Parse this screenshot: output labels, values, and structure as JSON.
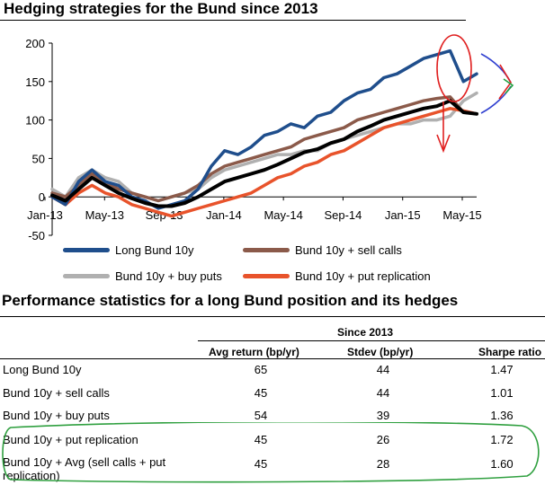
{
  "page_title": "Hedging strategies for the Bund since 2013",
  "chart_data": {
    "type": "line",
    "title": "Hedging strategies for the Bund since 2013",
    "xlabel": "",
    "ylabel": "",
    "ylim": [
      -50,
      200
    ],
    "yticks": [
      -50,
      0,
      50,
      100,
      150,
      200
    ],
    "xticks": [
      "Jan-13",
      "May-13",
      "Sep-13",
      "Jan-14",
      "May-14",
      "Sep-14",
      "Jan-15",
      "May-15"
    ],
    "x": [
      0,
      1,
      2,
      3,
      4,
      5,
      6,
      7,
      8,
      9,
      10,
      11,
      12,
      13,
      14,
      15,
      16,
      17,
      18,
      19,
      20,
      21,
      22,
      23,
      24,
      25,
      26,
      27,
      28,
      29,
      30,
      31,
      32
    ],
    "series": [
      {
        "name": "Long Bund 10y",
        "color": "#1f4e8c",
        "values": [
          0,
          -10,
          20,
          35,
          20,
          15,
          0,
          -5,
          -15,
          -10,
          -5,
          10,
          40,
          60,
          55,
          65,
          80,
          85,
          95,
          90,
          105,
          110,
          125,
          135,
          140,
          155,
          160,
          170,
          180,
          185,
          190,
          150,
          160
        ]
      },
      {
        "name": "Bund 10y + sell calls",
        "color": "#8b5a4a",
        "values": [
          5,
          0,
          15,
          30,
          20,
          10,
          5,
          0,
          -5,
          0,
          5,
          15,
          30,
          40,
          45,
          50,
          55,
          60,
          65,
          75,
          80,
          85,
          90,
          100,
          105,
          110,
          115,
          120,
          125,
          128,
          130,
          110,
          108
        ]
      },
      {
        "name": "Bund 10y + buy puts",
        "color": "#b0b0b0",
        "values": [
          10,
          0,
          25,
          35,
          25,
          20,
          5,
          0,
          -5,
          0,
          5,
          10,
          25,
          35,
          40,
          45,
          50,
          55,
          55,
          60,
          60,
          70,
          75,
          80,
          85,
          90,
          95,
          95,
          100,
          100,
          105,
          125,
          135
        ]
      },
      {
        "name": "Bund 10y + put replication",
        "color": "#e8532b",
        "values": [
          0,
          -10,
          5,
          15,
          5,
          0,
          -10,
          -15,
          -20,
          -25,
          -20,
          -15,
          -10,
          -5,
          0,
          5,
          15,
          25,
          30,
          40,
          45,
          55,
          60,
          70,
          80,
          90,
          95,
          100,
          105,
          110,
          115,
          112,
          108
        ]
      },
      {
        "name": "Bund 10y + Avg (sell calls + put replication)",
        "color": "#000000",
        "values": [
          2,
          -5,
          10,
          25,
          15,
          5,
          -2,
          -8,
          -12,
          -12,
          -8,
          0,
          10,
          20,
          25,
          30,
          35,
          42,
          50,
          58,
          62,
          70,
          75,
          85,
          92,
          100,
          105,
          110,
          115,
          118,
          125,
          110,
          108
        ]
      }
    ]
  },
  "legend": [
    {
      "label": "Long Bund 10y",
      "color": "#1f4e8c"
    },
    {
      "label": "Bund 10y + sell calls",
      "color": "#8b5a4a"
    },
    {
      "label": "Bund 10y + buy puts",
      "color": "#b0b0b0"
    },
    {
      "label": "Bund 10y + put replication",
      "color": "#e8532b"
    }
  ],
  "table": {
    "title": "Performance statistics for a long Bund position and its hedges",
    "group_header": "Since 2013",
    "columns": [
      "Avg return (bp/yr)",
      "Stdev (bp/yr)",
      "Sharpe ratio"
    ],
    "rows": [
      {
        "label": "Long Bund 10y",
        "avg": "65",
        "stdev": "44",
        "sharpe": "1.47"
      },
      {
        "label": "Bund 10y + sell calls",
        "avg": "45",
        "stdev": "44",
        "sharpe": "1.01"
      },
      {
        "label": "Bund 10y + buy puts",
        "avg": "54",
        "stdev": "39",
        "sharpe": "1.36"
      },
      {
        "label": "Bund 10y + put replication",
        "avg": "45",
        "stdev": "26",
        "sharpe": "1.72"
      },
      {
        "label": "Bund 10y + Avg (sell calls + put",
        "label2": "replication)",
        "avg": "45",
        "stdev": "28",
        "sharpe": "1.60"
      }
    ]
  },
  "annotation_colors": {
    "circle": "#e02020",
    "arrow_down": "#e02020",
    "chevron_blue": "#3040d0",
    "chevron_red": "#e02020",
    "chevron_green": "#20a040",
    "highlight_box": "#30a040"
  }
}
